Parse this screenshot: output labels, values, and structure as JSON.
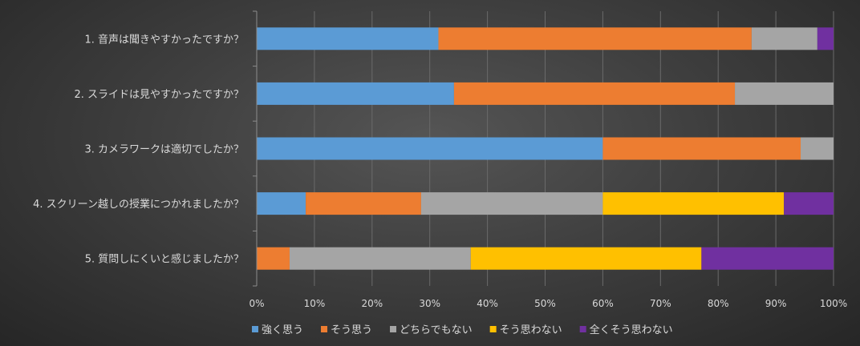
{
  "chart_data": {
    "type": "bar",
    "orientation": "horizontal",
    "stacked": "percent",
    "categories": [
      "1. 音声は聞きやすかったですか？",
      "2. スライドは見やすかったですか？",
      "3. カメラワークは適切でしたか？",
      "4. スクリーン越しの授業につかれましたか？",
      "5. 質問しにくいと感じましたか？"
    ],
    "series": [
      {
        "name": "強く思う",
        "color": "#5b9bd5",
        "values": [
          31.5,
          34.2,
          60.0,
          8.5,
          0.0
        ]
      },
      {
        "name": "そう思う",
        "color": "#ed7d31",
        "values": [
          54.3,
          48.7,
          34.3,
          20.0,
          5.7
        ]
      },
      {
        "name": "どちらでもない",
        "color": "#a5a5a5",
        "values": [
          11.4,
          17.1,
          5.7,
          31.5,
          31.4
        ]
      },
      {
        "name": "そう思わない",
        "color": "#ffc000",
        "values": [
          0.0,
          0.0,
          0.0,
          31.4,
          40.0
        ]
      },
      {
        "name": "全くそう思わない",
        "color": "#7030a0",
        "values": [
          2.8,
          0.0,
          0.0,
          8.6,
          22.9
        ]
      }
    ],
    "xlim": [
      0,
      100
    ],
    "xticks": [
      "0%",
      "10%",
      "20%",
      "30%",
      "40%",
      "50%",
      "60%",
      "70%",
      "80%",
      "90%",
      "100%"
    ],
    "legend_position": "bottom",
    "grid": true
  }
}
